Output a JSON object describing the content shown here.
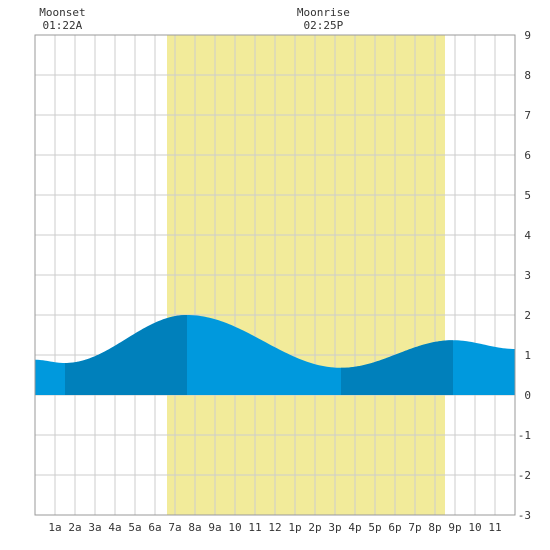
{
  "chart_data": {
    "type": "area",
    "title": "",
    "xlabel": "",
    "ylabel": "",
    "xlim": [
      0,
      24
    ],
    "ylim": [
      -3,
      9
    ],
    "grid": true,
    "x_tick_labels": [
      "1a",
      "2a",
      "3a",
      "4a",
      "5a",
      "6a",
      "7a",
      "8a",
      "9a",
      "10",
      "11",
      "12",
      "1p",
      "2p",
      "3p",
      "4p",
      "5p",
      "6p",
      "7p",
      "8p",
      "9p",
      "10",
      "11"
    ],
    "y_tick_labels": [
      "-3",
      "-2",
      "-1",
      "0",
      "1",
      "2",
      "3",
      "4",
      "5",
      "6",
      "7",
      "8",
      "9"
    ],
    "daylight_band": {
      "start_hour": 6.6,
      "end_hour": 20.5
    },
    "annotations": [
      {
        "name": "moonset",
        "label": "Moonset",
        "time": "01:22A",
        "hour": 1.37
      },
      {
        "name": "moonrise",
        "label": "Moonrise",
        "time": "02:25P",
        "hour": 14.42
      }
    ],
    "tide_extrema": [
      {
        "type": "low",
        "hour": 1.5,
        "height": 0.8
      },
      {
        "type": "high",
        "hour": 7.6,
        "height": 2.0
      },
      {
        "type": "low",
        "hour": 15.3,
        "height": 0.68
      },
      {
        "type": "high",
        "hour": 20.9,
        "height": 1.37
      }
    ],
    "boundary_values": {
      "start_height": 0.88,
      "end_height": 1.15
    },
    "colors": {
      "tide": "#0099dd",
      "tide_dark": "#0080bb",
      "daylight": "#f2eb9a",
      "grid": "#cccccc",
      "frame": "#999999"
    }
  }
}
